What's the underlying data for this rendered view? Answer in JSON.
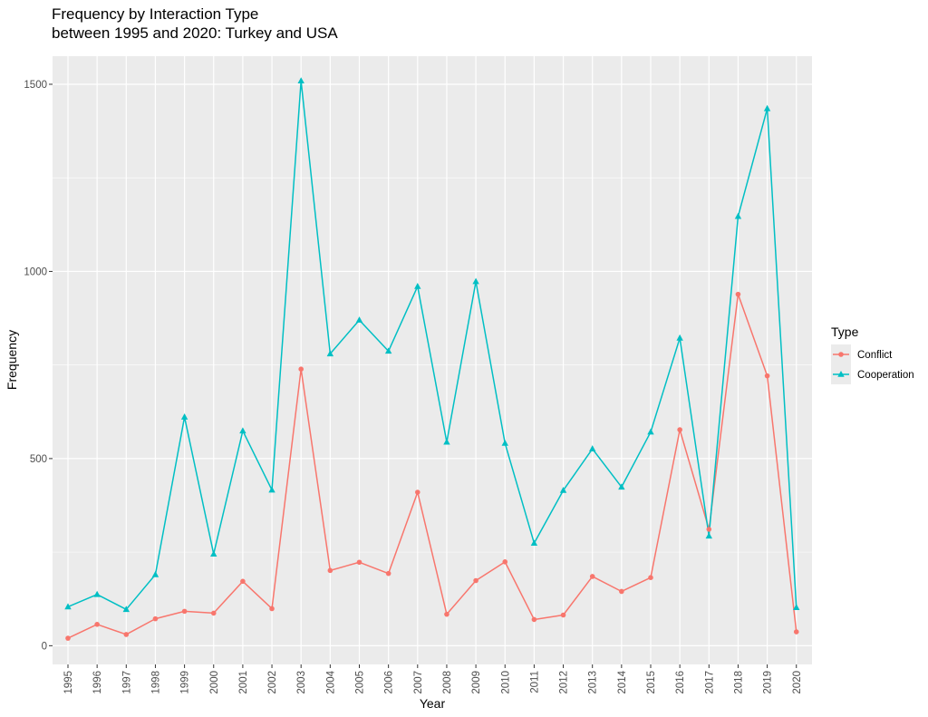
{
  "chart_data": {
    "type": "line",
    "title": "Frequency by Interaction Type",
    "subtitle": "between 1995 and 2020: Turkey and USA",
    "xlabel": "Year",
    "ylabel": "Frequency",
    "x": [
      "1995",
      "1996",
      "1997",
      "1998",
      "1999",
      "2000",
      "2001",
      "2002",
      "2003",
      "2004",
      "2005",
      "2006",
      "2007",
      "2008",
      "2009",
      "2010",
      "2011",
      "2012",
      "2013",
      "2014",
      "2015",
      "2016",
      "2017",
      "2018",
      "2019",
      "2020"
    ],
    "y_ticks": [
      "0",
      "500",
      "1000",
      "1500"
    ],
    "ylim": [
      -50,
      1575
    ],
    "grid": true,
    "legend": {
      "title": "Type",
      "position": "right"
    },
    "series": [
      {
        "name": "Conflict",
        "color": "#F8766D",
        "marker": "circle",
        "values": [
          20,
          57,
          30,
          72,
          92,
          87,
          172,
          99,
          739,
          201,
          223,
          193,
          410,
          84,
          174,
          224,
          70,
          82,
          185,
          145,
          182,
          577,
          311,
          939,
          721,
          37
        ]
      },
      {
        "name": "Cooperation",
        "color": "#00BFC4",
        "marker": "triangle",
        "values": [
          104,
          137,
          97,
          190,
          611,
          245,
          574,
          416,
          1509,
          780,
          870,
          787,
          960,
          544,
          973,
          541,
          274,
          415,
          526,
          424,
          571,
          822,
          293,
          1147,
          1435,
          102
        ]
      }
    ]
  }
}
